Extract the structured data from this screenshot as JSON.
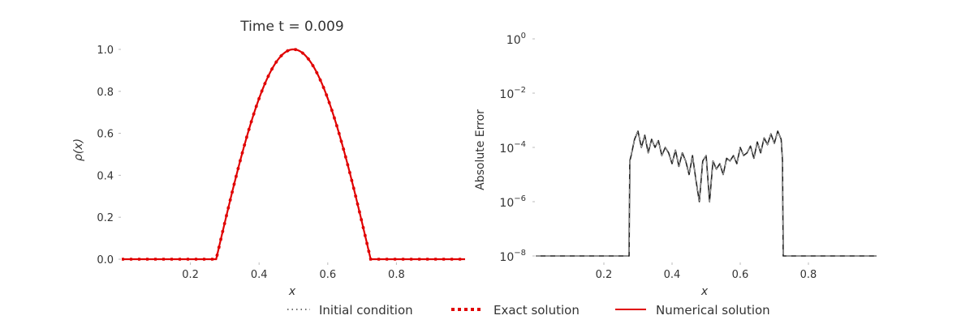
{
  "chart_data": [
    {
      "type": "line",
      "title": "Time t = 0.009",
      "xlabel": "x",
      "ylabel": "ρ(x)",
      "xlim": [
        0.0,
        1.0
      ],
      "ylim": [
        0.0,
        1.05
      ],
      "xticks": [
        "0.2",
        "0.4",
        "0.6",
        "0.8"
      ],
      "xtick_values": [
        0.2,
        0.4,
        0.6,
        0.8
      ],
      "yticks": [
        "0.0",
        "0.2",
        "0.4",
        "0.6",
        "0.8",
        "1.0"
      ],
      "ytick_values": [
        0.0,
        0.2,
        0.4,
        0.6,
        0.8,
        1.0
      ],
      "grid": false,
      "profile": {
        "support": [
          0.275,
          0.725
        ],
        "peak_x": 0.5,
        "peak_y": 1.0,
        "shape": "cosine bump"
      },
      "series": [
        {
          "name": "Initial condition",
          "color": "#444444",
          "style": "dotted"
        },
        {
          "name": "Exact solution",
          "color": "#e00000",
          "style": "dotted-thick"
        },
        {
          "name": "Numerical solution",
          "color": "#e00000",
          "style": "solid"
        }
      ]
    },
    {
      "type": "line",
      "title": "",
      "xlabel": "x",
      "ylabel": "Absolute Error",
      "yscale": "log",
      "xlim": [
        0.0,
        1.0
      ],
      "ylim_exponent": [
        -8,
        0
      ],
      "xticks": [
        "0.2",
        "0.4",
        "0.6",
        "0.8"
      ],
      "xtick_values": [
        0.2,
        0.4,
        0.6,
        0.8
      ],
      "yticks": [
        {
          "base": "10",
          "exp": "0",
          "value_exp": 0
        },
        {
          "base": "10",
          "exp": "−2",
          "value_exp": -2
        },
        {
          "base": "10",
          "exp": "−4",
          "value_exp": -4
        },
        {
          "base": "10",
          "exp": "−6",
          "value_exp": -6
        },
        {
          "base": "10",
          "exp": "−8",
          "value_exp": -8
        }
      ],
      "grid": false,
      "series": [
        {
          "name": "Absolute error",
          "color": "#222222",
          "x": [
            0.0,
            0.274,
            0.276,
            0.28,
            0.29,
            0.3,
            0.31,
            0.32,
            0.33,
            0.34,
            0.35,
            0.36,
            0.37,
            0.38,
            0.39,
            0.4,
            0.41,
            0.42,
            0.43,
            0.44,
            0.45,
            0.46,
            0.47,
            0.48,
            0.49,
            0.5,
            0.51,
            0.52,
            0.53,
            0.54,
            0.55,
            0.56,
            0.57,
            0.58,
            0.59,
            0.6,
            0.61,
            0.62,
            0.63,
            0.64,
            0.65,
            0.66,
            0.67,
            0.68,
            0.69,
            0.7,
            0.71,
            0.72,
            0.724,
            0.726,
            1.0
          ],
          "log10_y": [
            -8.0,
            -8.0,
            -4.5,
            -4.3,
            -3.7,
            -3.4,
            -4.0,
            -3.55,
            -4.2,
            -3.7,
            -4.0,
            -3.75,
            -4.3,
            -4.0,
            -4.2,
            -4.6,
            -4.1,
            -4.7,
            -4.2,
            -4.5,
            -5.0,
            -4.3,
            -5.2,
            -6.0,
            -4.5,
            -4.3,
            -6.0,
            -4.5,
            -4.8,
            -4.6,
            -5.0,
            -4.4,
            -4.5,
            -4.3,
            -4.6,
            -4.0,
            -4.3,
            -4.2,
            -3.95,
            -4.4,
            -3.8,
            -4.2,
            -3.65,
            -3.9,
            -3.5,
            -3.85,
            -3.4,
            -3.7,
            -4.5,
            -8.0,
            -8.0
          ]
        }
      ]
    }
  ],
  "legend": {
    "placement": "bottom-center",
    "items": [
      {
        "label": "Initial condition",
        "style": "dotted",
        "color": "#444444"
      },
      {
        "label": "Exact solution",
        "style": "dotted-thick",
        "color": "#e00000"
      },
      {
        "label": "Numerical solution",
        "style": "solid",
        "color": "#e00000"
      }
    ]
  }
}
